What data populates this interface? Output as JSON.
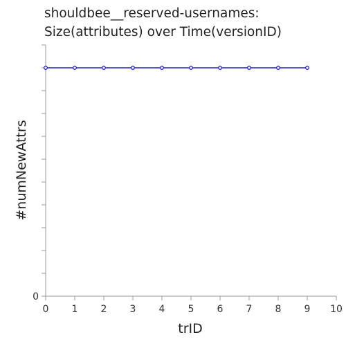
{
  "chart_data": {
    "type": "line",
    "title_lines": [
      "shouldbee__reserved-usernames:",
      "Size(attributes) over Time(versionID)"
    ],
    "xlabel": "trID",
    "ylabel": "#numNewAttrs",
    "xlim": [
      0,
      10
    ],
    "x_ticks": [
      0,
      1,
      2,
      3,
      4,
      5,
      6,
      7,
      8,
      9,
      10
    ],
    "y_tick_labels": [
      "0"
    ],
    "grid": false,
    "series": [
      {
        "color": "#1f1fd0",
        "x": [
          0,
          1,
          2,
          3,
          4,
          5,
          6,
          7,
          8,
          9
        ],
        "y": [
          1,
          1,
          1,
          1,
          1,
          1,
          1,
          1,
          1,
          1
        ]
      }
    ]
  }
}
